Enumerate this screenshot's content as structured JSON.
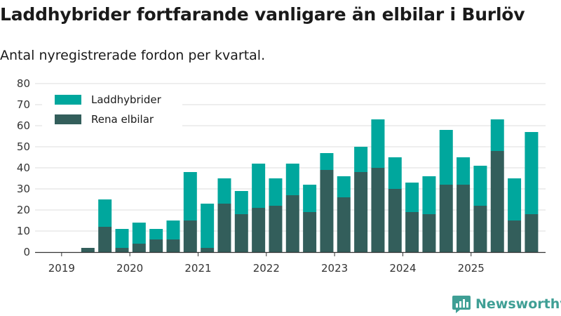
{
  "header": {
    "title": "Laddhybrider fortfarande vanligare än elbilar i Burlöv",
    "subtitle": "Antal nyregistrerade fordon per kvartal."
  },
  "brand": {
    "name": "Newsworthy"
  },
  "colors": {
    "plugin_hybrid": "#00a79d",
    "electric": "#335e5b",
    "grid": "#dddddd",
    "axis": "#333333",
    "brand": "#3f9f95"
  },
  "chart_data": {
    "type": "bar",
    "stacked": true,
    "title": "Laddhybrider fortfarande vanligare än elbilar i Burlöv",
    "subtitle": "Antal nyregistrerade fordon per kvartal.",
    "xlabel": "",
    "ylabel": "",
    "ylim": [
      0,
      80
    ],
    "yticks": [
      0,
      10,
      20,
      30,
      40,
      50,
      60,
      70,
      80
    ],
    "xtick_labels": [
      "2019",
      "2020",
      "2021",
      "2022",
      "2023",
      "2024",
      "2025"
    ],
    "categories": [
      "2019 Q1",
      "2019 Q2",
      "2019 Q3",
      "2019 Q4",
      "2020 Q1",
      "2020 Q2",
      "2020 Q3",
      "2020 Q4",
      "2021 Q1",
      "2021 Q2",
      "2021 Q3",
      "2021 Q4",
      "2022 Q1",
      "2022 Q2",
      "2022 Q3",
      "2022 Q4",
      "2023 Q1",
      "2023 Q2",
      "2023 Q3",
      "2023 Q4",
      "2024 Q1",
      "2024 Q2",
      "2024 Q3",
      "2024 Q4",
      "2025 Q1",
      "2025 Q2",
      "2025 Q3",
      "2025 Q4"
    ],
    "series": [
      {
        "name": "Rena elbilar",
        "values": [
          0,
          2,
          12,
          2,
          4,
          6,
          6,
          15,
          2,
          23,
          18,
          21,
          22,
          27,
          19,
          39,
          26,
          38,
          40,
          30,
          19,
          18,
          32,
          32,
          22,
          48,
          15,
          18
        ]
      },
      {
        "name": "Laddhybrider",
        "values": [
          0,
          0,
          13,
          9,
          10,
          5,
          9,
          23,
          21,
          12,
          11,
          21,
          13,
          15,
          13,
          8,
          10,
          12,
          23,
          15,
          14,
          18,
          26,
          13,
          19,
          15,
          20,
          39
        ]
      }
    ],
    "legend": {
      "position": "top-left",
      "order": [
        "Laddhybrider",
        "Rena elbilar"
      ]
    },
    "grid": true
  }
}
